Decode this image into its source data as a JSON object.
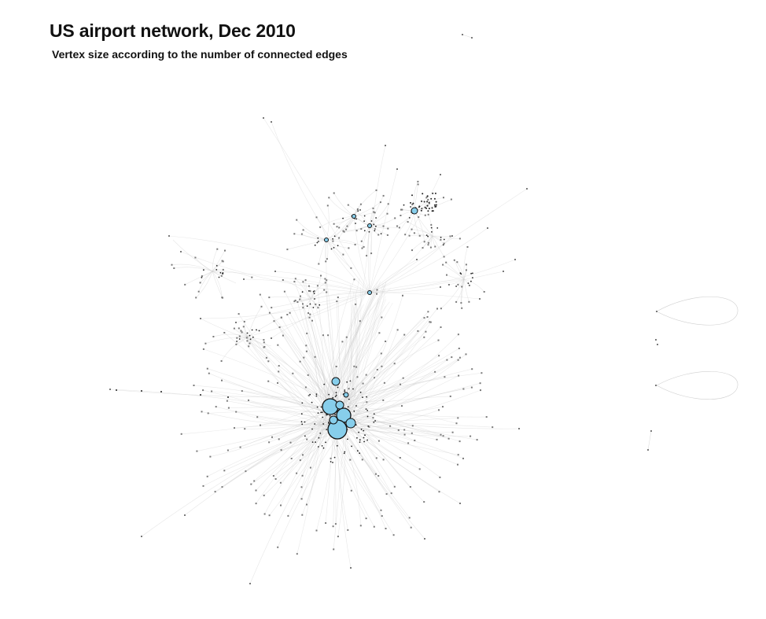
{
  "figure": {
    "title": "US airport network, Dec 2010",
    "subtitle": "Vertex size according to the number of connected edges"
  },
  "colors": {
    "background": "#ffffff",
    "edge": "#cfcfcf",
    "hub_fill": "#87ceeb",
    "hub_stroke": "#111111",
    "leaf": "#7a7a7a",
    "small_node": "#222222"
  }
}
